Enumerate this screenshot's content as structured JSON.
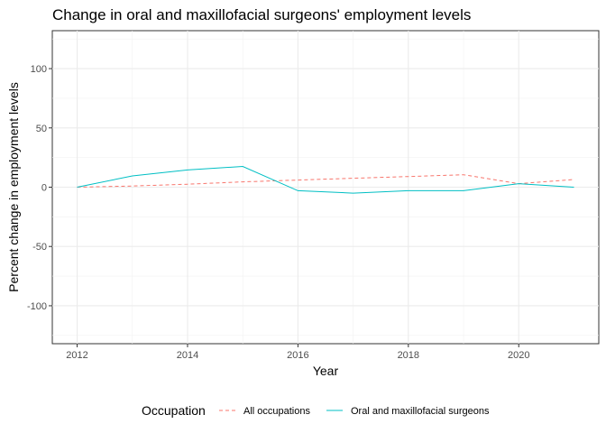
{
  "chart_data": {
    "type": "line",
    "title": "Change in oral and maxillofacial surgeons' employment levels",
    "xlabel": "Year",
    "ylabel": "Percent change in employment levels",
    "x": [
      2012,
      2013,
      2014,
      2015,
      2016,
      2017,
      2018,
      2019,
      2020,
      2021
    ],
    "xlim": [
      2011.55,
      2021.45
    ],
    "ylim": [
      -132,
      132
    ],
    "x_ticks": [
      2012,
      2014,
      2016,
      2018,
      2020
    ],
    "y_ticks": [
      -100,
      -50,
      0,
      50,
      100
    ],
    "grid": true,
    "legend": {
      "title": "Occupation",
      "position": "bottom"
    },
    "series": [
      {
        "name": "All occupations",
        "color": "#F8766D",
        "dash": "dashed",
        "values": [
          0,
          1,
          2.5,
          4.5,
          6,
          7.5,
          9,
          10.5,
          3,
          6.5
        ]
      },
      {
        "name": "Oral and maxillofacial surgeons",
        "color": "#00BFC4",
        "dash": "solid",
        "values": [
          0,
          9.5,
          14.5,
          17.5,
          -3,
          -5,
          -3,
          -3,
          3,
          0
        ]
      }
    ]
  }
}
